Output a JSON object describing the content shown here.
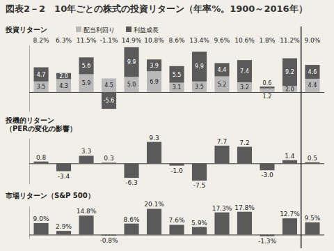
{
  "title": "図表2－2　10年ごとの株式の投資リターン（年率%。1900～2016年）",
  "chart_data": [
    {
      "type": "bar",
      "title": "投資リターン",
      "stacked": true,
      "legend": "top",
      "data_labels": true,
      "tick_labels": false,
      "categories": [
        null,
        null,
        null,
        null,
        null,
        null,
        null,
        null,
        null,
        null,
        null,
        null,
        null
      ],
      "series": [
        {
          "name": "配当利回り",
          "color": "#b9b9b9",
          "values": [
            3.5,
            4.3,
            5.9,
            4.5,
            5.0,
            6.9,
            3.1,
            3.5,
            5.2,
            3.2,
            1.2,
            2.0,
            4.4
          ],
          "value_labels": [
            "3.5",
            "4.3",
            "5.9",
            "4.5",
            "5.0",
            "6.9",
            "3.1",
            "3.5",
            "5.2",
            "3.2",
            "1.2",
            "2.0",
            "4.4"
          ]
        },
        {
          "name": "利益成長",
          "color": "#5a5a5a",
          "values": [
            4.7,
            2.0,
            5.6,
            -5.6,
            9.9,
            3.9,
            5.5,
            9.9,
            4.4,
            7.4,
            0.6,
            9.2,
            4.6
          ],
          "value_labels": [
            "4.7",
            "2.0",
            "5.6",
            "-5.6",
            "9.9",
            "3.9",
            "5.5",
            "9.9",
            "4.4",
            "7.4",
            "0.6",
            "9.2",
            "4.6"
          ]
        }
      ],
      "total_labels": [
        "8.2%",
        "6.3%",
        "11.5%",
        "-1.1%",
        "14.9%",
        "10.8%",
        "8.6%",
        "13.4%",
        "9.6%",
        "10.6%",
        "1.8%",
        "11.2%",
        "9.0%"
      ],
      "ylim": [
        -6.5,
        15.5
      ],
      "yticks": [
        0
      ]
    },
    {
      "type": "bar",
      "title": "投機的リターン（PERの変化の影響）",
      "data_labels": true,
      "tick_labels": false,
      "color": "#5a5a5a",
      "categories": [
        null,
        null,
        null,
        null,
        null,
        null,
        null,
        null,
        null,
        null,
        null,
        null,
        null
      ],
      "values": [
        0.8,
        -3.4,
        3.3,
        0.3,
        -6.3,
        9.3,
        -1.0,
        -7.5,
        7.7,
        7.2,
        -3.0,
        1.4,
        0.5
      ],
      "value_labels": [
        "0.8",
        "-3.4",
        "3.3",
        "0.3",
        "-6.3",
        "9.3",
        "-1.0",
        "-7.5",
        "7.7",
        "7.2",
        "-3.0",
        "1.4",
        "0.5"
      ],
      "ylim": [
        -9,
        11
      ],
      "yticks": [
        0
      ]
    },
    {
      "type": "bar",
      "title": "市場リターン（S&P 500）",
      "data_labels": true,
      "tick_labels": false,
      "color": "#5a5a5a",
      "categories": [
        null,
        null,
        null,
        null,
        null,
        null,
        null,
        null,
        null,
        null,
        null,
        null,
        null
      ],
      "values": [
        9.0,
        2.9,
        14.8,
        -0.8,
        8.6,
        20.1,
        7.6,
        5.9,
        17.3,
        17.8,
        -1.3,
        12.7,
        9.5
      ],
      "value_labels": [
        "9.0%",
        "2.9%",
        "14.8%",
        "-0.8%",
        "8.6%",
        "20.1%",
        "7.6%",
        "5.9%",
        "17.3%",
        "17.8%",
        "-1.3%",
        "12.7%",
        "9.5%"
      ],
      "ylim": [
        -3,
        22
      ],
      "yticks": [
        0
      ]
    }
  ]
}
